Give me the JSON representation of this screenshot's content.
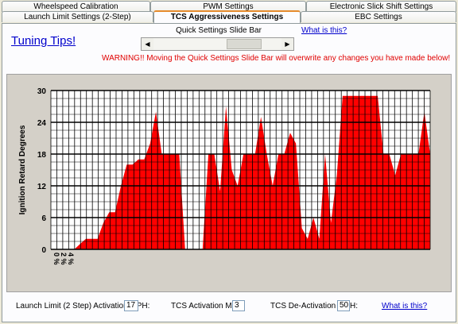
{
  "tabs_row1": [
    {
      "label": "Wheelspeed Calibration"
    },
    {
      "label": "PWM Settings"
    },
    {
      "label": "Electronic Slick Shift Settings"
    }
  ],
  "tabs_row2": [
    {
      "label": "Launch Limit Settings (2-Step)"
    },
    {
      "label": "TCS Aggressiveness Settings"
    },
    {
      "label": "EBC Settings"
    }
  ],
  "tuning_tips": "Tuning Tips!",
  "quick_settings": {
    "label": "Quick Settings Slide Bar",
    "what_is_this": "What is this?",
    "left_arrow": "◀",
    "right_arrow": "▶"
  },
  "warning": "WARNING!!  Moving the Quick Settings Slide Bar will overwrite any changes you have made below!",
  "chart_data": {
    "type": "area",
    "ylabel": "Ignition Retard Degrees",
    "ylim": [
      0,
      30
    ],
    "yticks": [
      "0",
      "6",
      "12",
      "18",
      "24",
      "30"
    ],
    "xticks": [
      "0 %",
      "2 %",
      "4 %"
    ],
    "fill_color": "#ff0000",
    "grid": true,
    "values": [
      0,
      0,
      0,
      0,
      0,
      1,
      2,
      2,
      2,
      5,
      7,
      7,
      12,
      16,
      16,
      17,
      17,
      20,
      26,
      18,
      18,
      18,
      18,
      0,
      0,
      0,
      0,
      18,
      18,
      11,
      27,
      15,
      12,
      18,
      18,
      18,
      25,
      18,
      12,
      18,
      18,
      22,
      20,
      4,
      2,
      6,
      2,
      18,
      5,
      14,
      29,
      29,
      29,
      29,
      29,
      29,
      29,
      18,
      18,
      14,
      18,
      18,
      18,
      18,
      26,
      18
    ]
  },
  "bottom": {
    "launch_label": "Launch Limit (2 Step) Activation MPH:",
    "launch_value": "17",
    "tcs_label": "TCS Activation MPH:",
    "tcs_value": "3",
    "deact_label": "TCS De-Activation MPH:",
    "deact_value": "50",
    "what_is_this": "What is this?"
  }
}
